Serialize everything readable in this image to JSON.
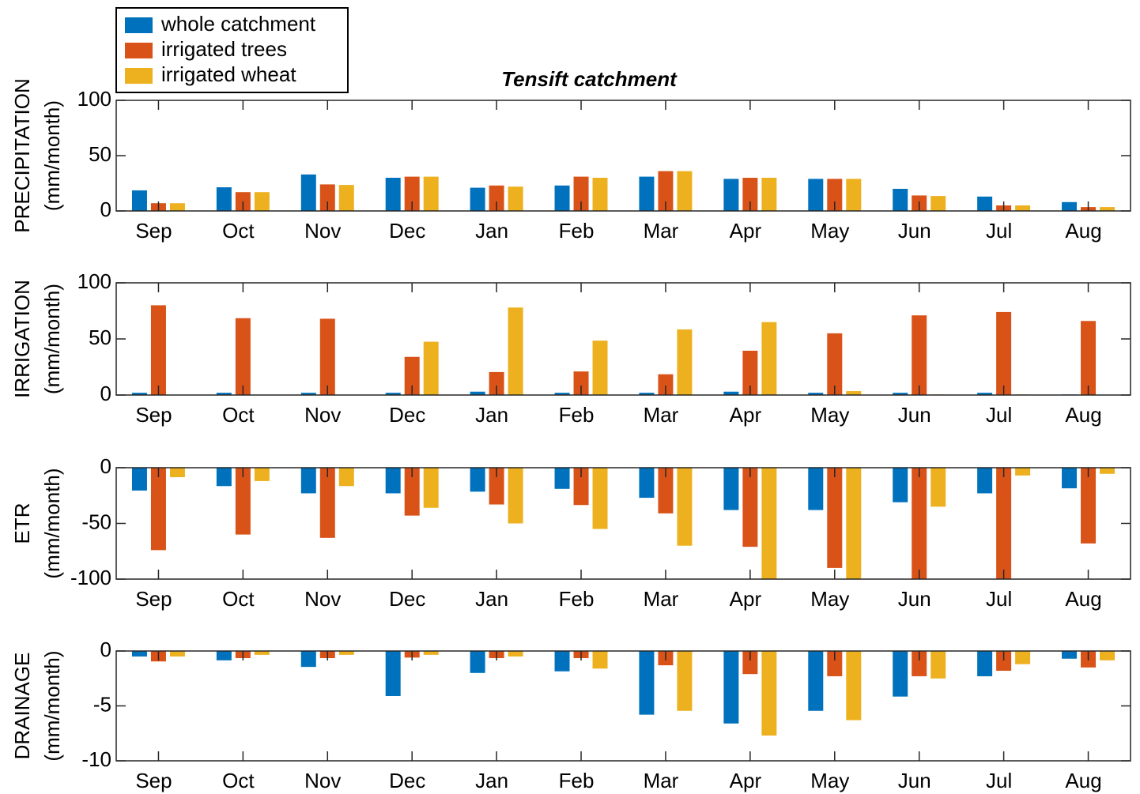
{
  "chart_data": [
    {
      "type": "bar",
      "title": "Tensift catchment",
      "ylabel": [
        "PRECIPITATION",
        "(mm/month)"
      ],
      "categories": [
        "Sep",
        "Oct",
        "Nov",
        "Dec",
        "Jan",
        "Feb",
        "Mar",
        "Apr",
        "May",
        "Jun",
        "Jul",
        "Aug"
      ],
      "series": [
        {
          "name": "whole catchment",
          "color": "#0072bd",
          "values": [
            18.6,
            21.4,
            33,
            30,
            21,
            23,
            31,
            29,
            29,
            20,
            13,
            8
          ]
        },
        {
          "name": "irrigated trees",
          "color": "#d95319",
          "values": [
            7,
            17,
            24,
            31,
            23,
            31,
            36,
            30,
            29,
            14,
            5,
            3.5
          ]
        },
        {
          "name": "irrigated wheat",
          "color": "#edb120",
          "values": [
            7,
            17,
            23.5,
            31,
            22,
            30,
            36,
            30,
            29,
            13.5,
            5,
            3.5
          ]
        }
      ],
      "ylim": [
        0,
        100
      ],
      "yticks": [
        0,
        50,
        100
      ],
      "grid": false,
      "legend": "top-left"
    },
    {
      "type": "bar",
      "ylabel": [
        "IRRIGATION",
        "(mm/month)"
      ],
      "categories": [
        "Sep",
        "Oct",
        "Nov",
        "Dec",
        "Jan",
        "Feb",
        "Mar",
        "Apr",
        "May",
        "Jun",
        "Jul",
        "Aug"
      ],
      "series": [
        {
          "color": "#0072bd",
          "values": [
            2,
            2,
            2,
            2,
            3,
            2,
            2,
            3,
            2,
            2,
            2,
            0.5
          ]
        },
        {
          "color": "#d95319",
          "values": [
            80,
            68.5,
            68,
            34,
            20.5,
            21,
            18.5,
            39.5,
            55,
            71,
            74,
            66
          ]
        },
        {
          "color": "#edb120",
          "values": [
            0,
            0,
            0,
            47.5,
            78,
            48.5,
            58.5,
            65,
            3.5,
            0.5,
            0.5,
            0
          ]
        }
      ],
      "ylim": [
        0,
        100
      ],
      "yticks": [
        0,
        50,
        100
      ],
      "grid": false
    },
    {
      "type": "bar",
      "ylabel": [
        "ETR",
        "(mm/month)"
      ],
      "categories": [
        "Sep",
        "Oct",
        "Nov",
        "Dec",
        "Jan",
        "Feb",
        "Mar",
        "Apr",
        "May",
        "Jun",
        "Jul",
        "Aug"
      ],
      "series": [
        {
          "color": "#0072bd",
          "values": [
            -20.5,
            -16.5,
            -23,
            -23,
            -21.5,
            -19,
            -27,
            -38,
            -38,
            -31,
            -23,
            -18.5
          ]
        },
        {
          "color": "#d95319",
          "values": [
            -74,
            -60,
            -63,
            -43,
            -33,
            -33.5,
            -41,
            -71,
            -90,
            -100,
            -100,
            -68
          ]
        },
        {
          "color": "#edb120",
          "values": [
            -8.5,
            -12,
            -16.5,
            -36,
            -50,
            -55,
            -70,
            -100,
            -100,
            -35,
            -7,
            -5.5
          ]
        }
      ],
      "ylim": [
        -100,
        0
      ],
      "yticks": [
        -100,
        -50,
        0
      ],
      "grid": false
    },
    {
      "type": "bar",
      "ylabel": [
        "DRAINAGE",
        "(mm/month)"
      ],
      "categories": [
        "Sep",
        "Oct",
        "Nov",
        "Dec",
        "Jan",
        "Feb",
        "Mar",
        "Apr",
        "May",
        "Jun",
        "Jul",
        "Aug"
      ],
      "series": [
        {
          "color": "#0072bd",
          "values": [
            -0.5,
            -0.85,
            -1.45,
            -4.1,
            -2,
            -1.85,
            -5.8,
            -6.6,
            -5.45,
            -4.15,
            -2.3,
            -0.7
          ]
        },
        {
          "color": "#d95319",
          "values": [
            -0.95,
            -0.65,
            -0.65,
            -0.6,
            -0.65,
            -0.65,
            -1.3,
            -2.1,
            -2.3,
            -2.3,
            -1.8,
            -1.5
          ]
        },
        {
          "color": "#edb120",
          "values": [
            -0.5,
            -0.35,
            -0.35,
            -0.35,
            -0.5,
            -1.6,
            -5.45,
            -7.7,
            -6.3,
            -2.5,
            -1.2,
            -0.85
          ]
        }
      ],
      "ylim": [
        -10,
        0
      ],
      "yticks": [
        -10,
        -5,
        0
      ],
      "grid": false
    }
  ]
}
